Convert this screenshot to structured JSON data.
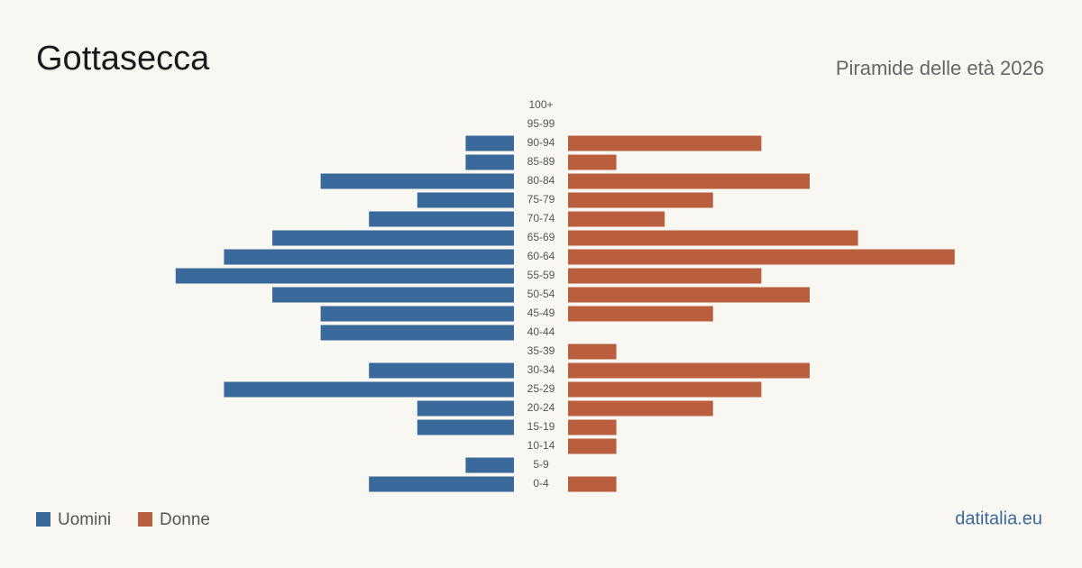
{
  "chart_data": {
    "type": "pyramid",
    "title": "Gottasecca",
    "subtitle": "Piramide delle età 2026",
    "categories": [
      "100+",
      "95-99",
      "90-94",
      "85-89",
      "80-84",
      "75-79",
      "70-74",
      "65-69",
      "60-64",
      "55-59",
      "50-54",
      "45-49",
      "40-44",
      "35-39",
      "30-34",
      "25-29",
      "20-24",
      "15-19",
      "10-14",
      "5-9",
      "0-4"
    ],
    "series": [
      {
        "name": "Uomini",
        "color": "#3a6a9c",
        "values": [
          0,
          0,
          1,
          1,
          4,
          2,
          3,
          5,
          6,
          7,
          5,
          4,
          4,
          0,
          3,
          6,
          2,
          2,
          0,
          1,
          3
        ]
      },
      {
        "name": "Donne",
        "color": "#b95f3e",
        "values": [
          0,
          0,
          4,
          1,
          5,
          3,
          2,
          6,
          8,
          4,
          5,
          3,
          0,
          1,
          5,
          4,
          3,
          1,
          1,
          0,
          1
        ]
      }
    ],
    "source": "datitalia.eu"
  }
}
